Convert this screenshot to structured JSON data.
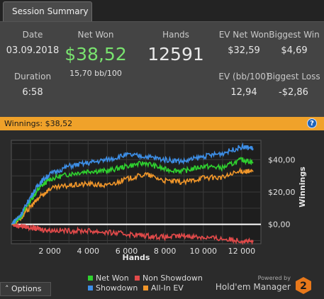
{
  "tab": {
    "label": "Session Summary"
  },
  "summary": {
    "date_label": "Date",
    "date_value": "03.09.2018",
    "duration_label": "Duration",
    "duration_value": "6:58",
    "net_won_label": "Net Won",
    "net_won_value": "$38,52",
    "bb_per_100": "15,70 bb/100",
    "hands_label": "Hands",
    "hands_value": "12591",
    "ev_net_won_label": "EV Net Won",
    "ev_net_won_value": "$32,59",
    "ev_bb_label": "EV (bb/100)",
    "ev_bb_value": "12,94",
    "biggest_win_label": "Biggest Win",
    "biggest_win_value": "$4,69",
    "biggest_loss_label": "Biggest Loss",
    "biggest_loss_value": "-$2,86"
  },
  "winnings_bar": {
    "text": "Winnings: $38,52",
    "help_icon": "question-icon",
    "help_glyph": "?"
  },
  "chart_data": {
    "type": "line",
    "xlabel": "Hands",
    "ylabel": "Winnings",
    "xlim": [
      0,
      13000
    ],
    "ylim": [
      -12,
      52
    ],
    "x_ticks": [
      2000,
      4000,
      6000,
      8000,
      10000,
      12000
    ],
    "x_tick_labels": [
      "2 000",
      "4 000",
      "6 000",
      "8 000",
      "10 000",
      "12 000"
    ],
    "y_ticks": [
      0,
      20,
      40
    ],
    "y_tick_labels": [
      "$0,00",
      "$20,00",
      "$40,00"
    ],
    "grid": true,
    "legend_position": "bottom",
    "x": [
      0,
      500,
      1000,
      1500,
      2000,
      3000,
      4000,
      5000,
      6000,
      7000,
      8000,
      9000,
      10000,
      11000,
      12000,
      12591
    ],
    "series": [
      {
        "name": "Net Won",
        "color": "#2fd12f",
        "values": [
          0,
          5,
          15,
          23,
          28,
          31,
          33,
          33,
          36,
          38,
          34,
          33,
          36,
          35,
          40,
          38.5
        ]
      },
      {
        "name": "Showdown",
        "color": "#3d8ee6",
        "values": [
          0,
          6,
          17,
          26,
          31,
          36,
          38,
          40,
          43,
          42,
          40,
          39,
          42,
          44,
          48,
          47
        ]
      },
      {
        "name": "Non Showdown",
        "color": "#e24a4a",
        "values": [
          0,
          -1,
          -2,
          -3,
          -3.5,
          -4,
          -4,
          -5,
          -6,
          -7,
          -8,
          -7,
          -8,
          -9,
          -10,
          -11
        ]
      },
      {
        "name": "All-In EV",
        "color": "#f0962a",
        "values": [
          0,
          4,
          11,
          17,
          22,
          24,
          25,
          24,
          28,
          31,
          27,
          26,
          29,
          29,
          33,
          32.5
        ]
      }
    ],
    "zero_line": "$0,00"
  },
  "footer": {
    "options_label": "Options",
    "options_icon": "caret-up-icon",
    "powered_by": "Powered by",
    "brand": "Hold'em Manager",
    "brand_badge": "2",
    "brand_color": "#e8781a"
  }
}
